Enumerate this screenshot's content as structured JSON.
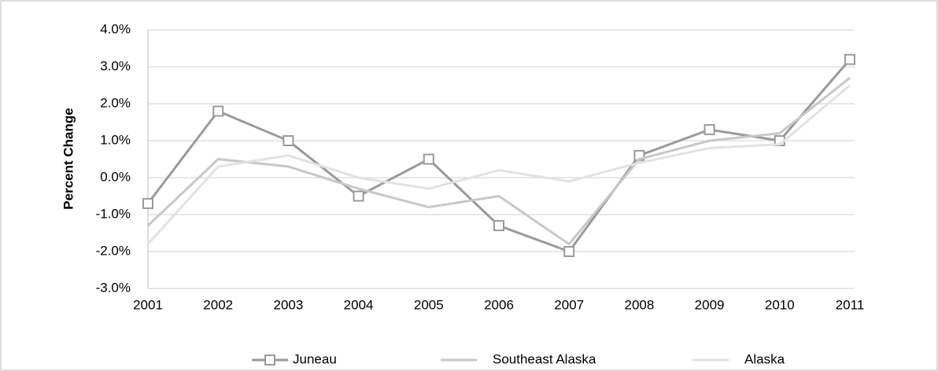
{
  "chart_data": {
    "type": "line",
    "y_label": "Percent Change",
    "categories": [
      "2001",
      "2002",
      "2003",
      "2004",
      "2005",
      "2006",
      "2007",
      "2008",
      "2009",
      "2010",
      "2011"
    ],
    "series": [
      {
        "name": "Juneau",
        "color": "#9a9a9a",
        "values": [
          -0.7,
          1.8,
          1.0,
          -0.5,
          0.5,
          -1.3,
          -2.0,
          0.6,
          1.3,
          1.0,
          3.2
        ]
      },
      {
        "name": "Southeast Alaska",
        "color": "#c8c8c8",
        "values": [
          -1.3,
          0.5,
          0.3,
          -0.3,
          -0.8,
          -0.5,
          -1.8,
          0.5,
          1.0,
          1.2,
          2.7
        ]
      },
      {
        "name": "Alaska",
        "color": "#e2e2e2",
        "values": [
          -1.8,
          0.3,
          0.6,
          0.0,
          -0.3,
          0.2,
          -0.1,
          0.4,
          0.8,
          0.9,
          2.5
        ]
      }
    ],
    "ylim": [
      -3,
      4
    ],
    "yticks": [
      {
        "value": -3,
        "label": "-3.0%"
      },
      {
        "value": -2,
        "label": "-2.0%"
      },
      {
        "value": -1,
        "label": "-1.0%"
      },
      {
        "value": 0,
        "label": "0.0%"
      },
      {
        "value": 1,
        "label": "1.0%"
      },
      {
        "value": 2,
        "label": "2.0%"
      },
      {
        "value": 3,
        "label": "3.0%"
      },
      {
        "value": 4,
        "label": "4.0%"
      }
    ],
    "grid": true,
    "legend": "bottom"
  }
}
